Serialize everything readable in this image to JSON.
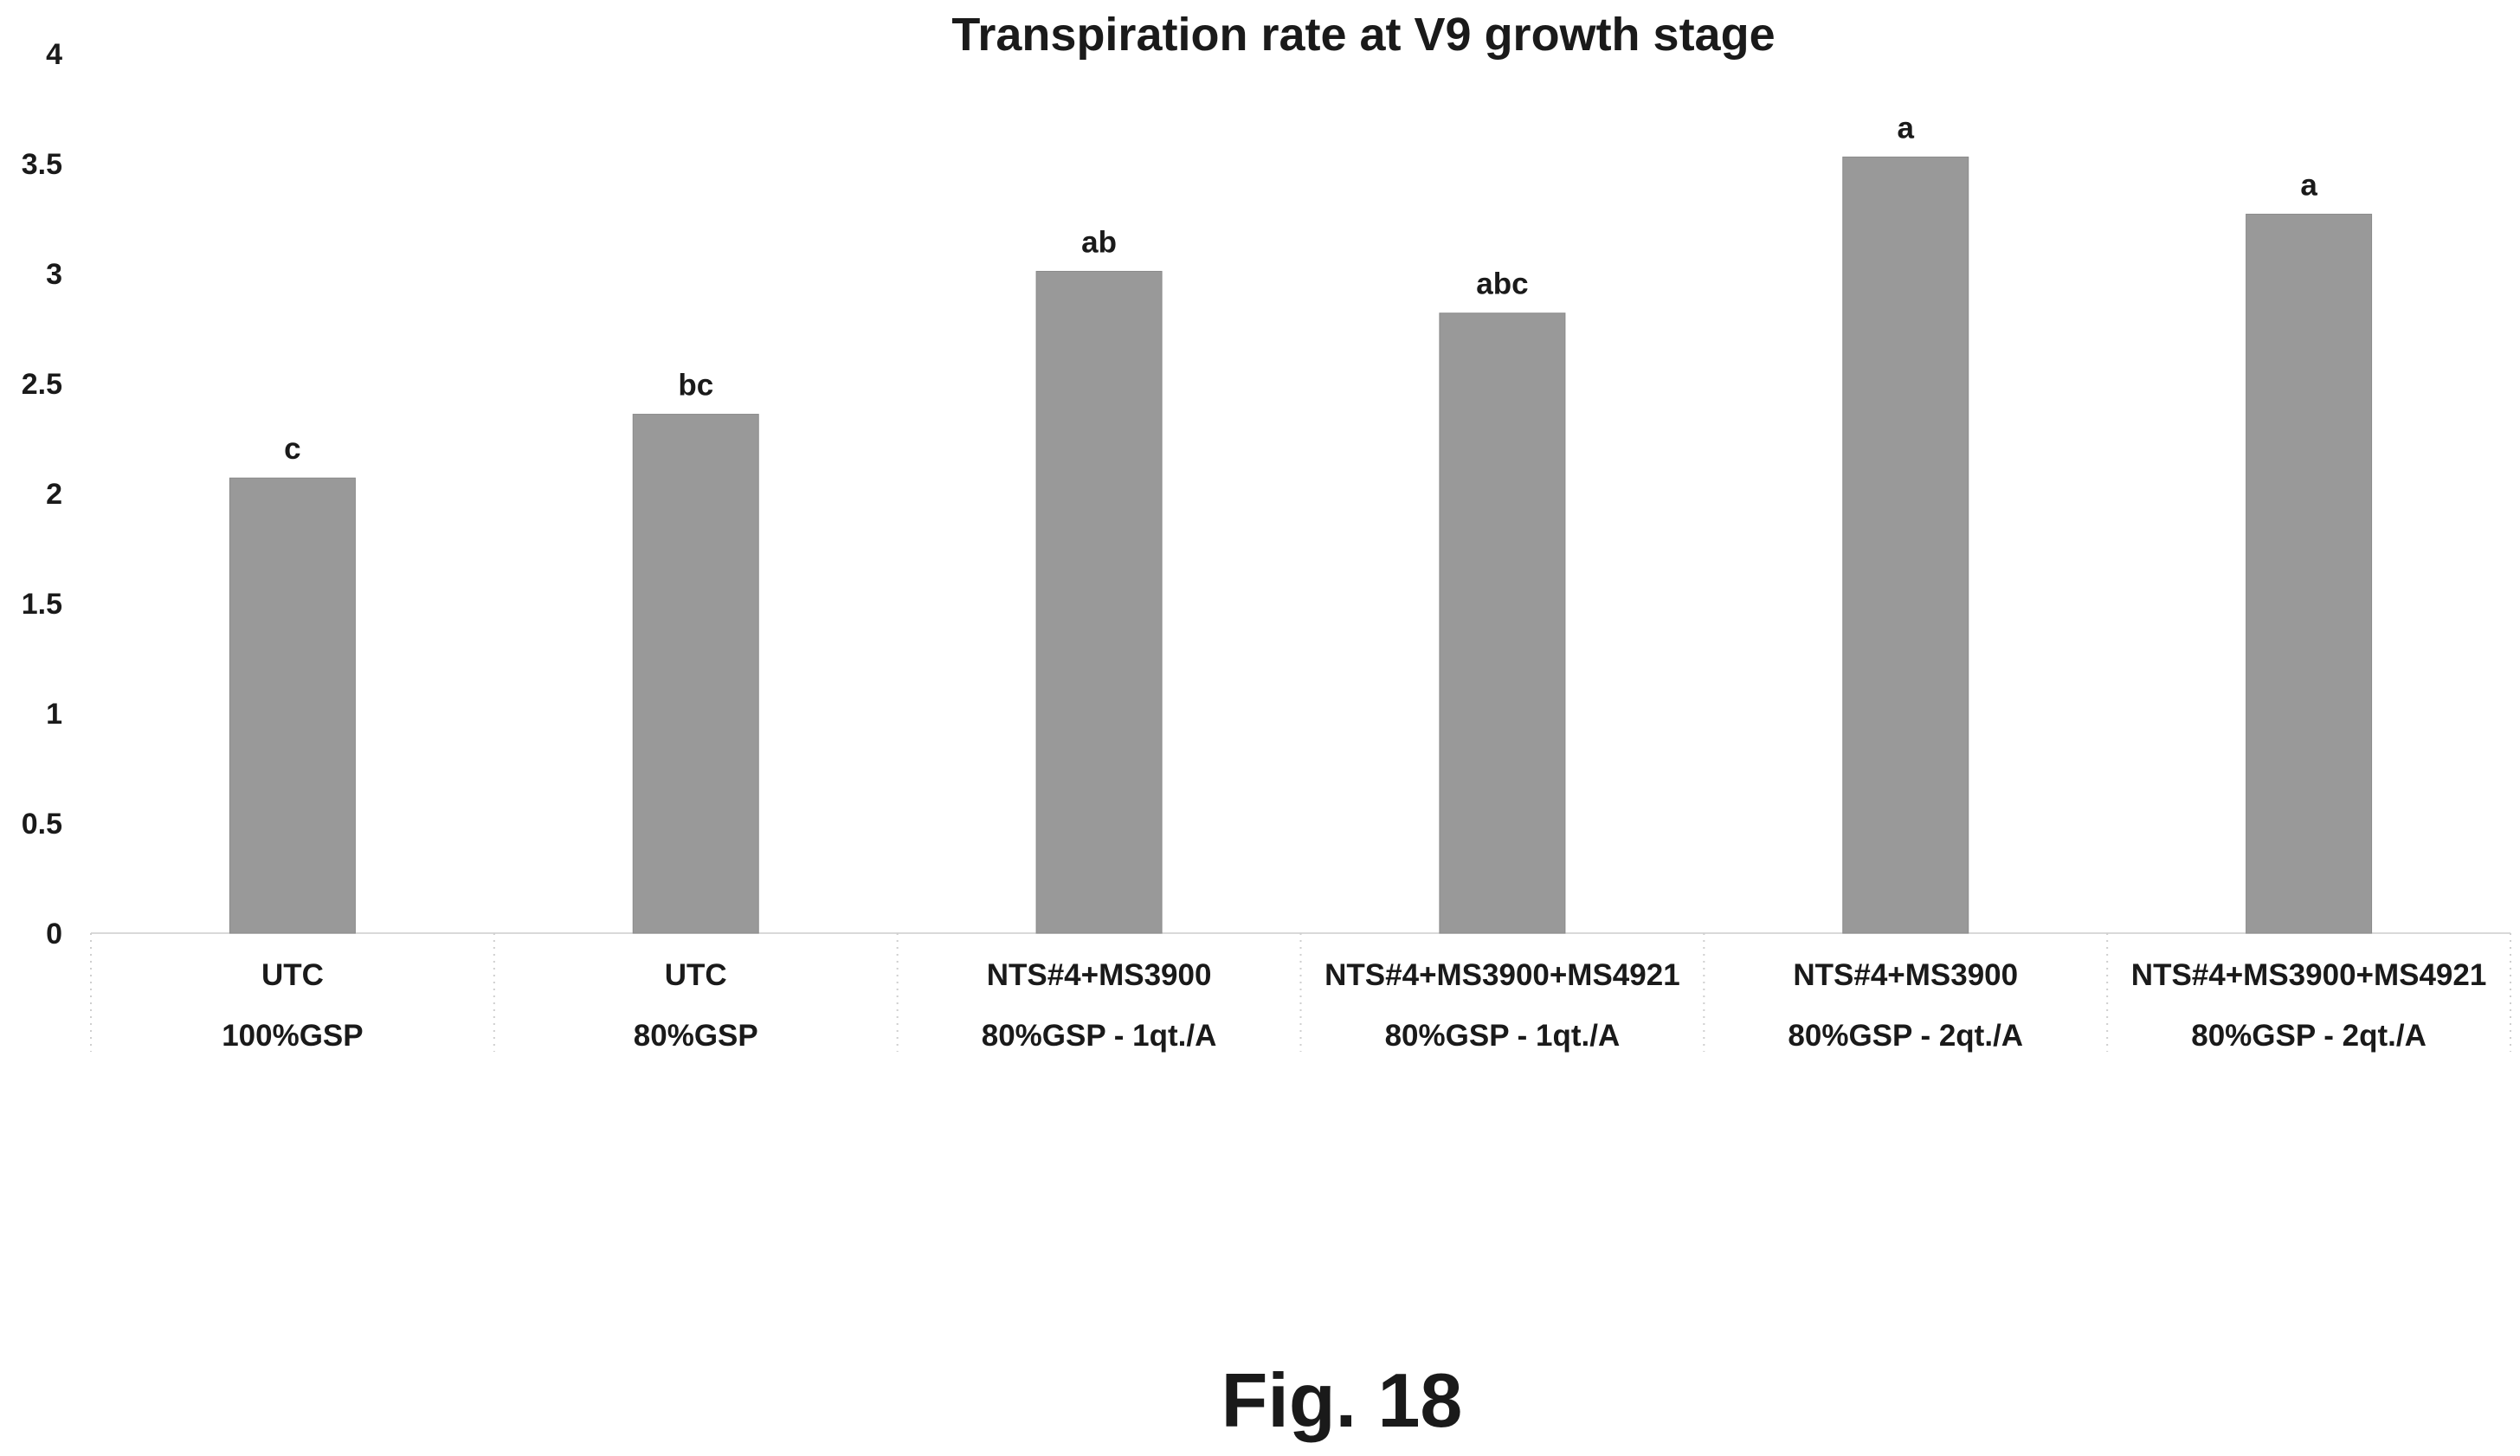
{
  "chart_data": {
    "type": "bar",
    "title": "Transpiration rate at V9 growth stage",
    "xlabel": "",
    "ylabel": "",
    "ylim": [
      0,
      4
    ],
    "yticks": [
      "0",
      "0.5",
      "1",
      "1.5",
      "2",
      "2.5",
      "3",
      "3.5",
      "4"
    ],
    "grid": false,
    "categories": [
      [
        "UTC",
        "100%GSP"
      ],
      [
        "UTC",
        "80%GSP"
      ],
      [
        "NTS#4+MS3900",
        "80%GSP - 1qt./A"
      ],
      [
        "NTS#4+MS3900+MS4921",
        "80%GSP - 1qt./A"
      ],
      [
        "NTS#4+MS3900",
        "80%GSP - 2qt./A"
      ],
      [
        "NTS#4+MS3900+MS4921",
        "80%GSP - 2qt./A"
      ]
    ],
    "values": [
      2.07,
      2.36,
      3.01,
      2.82,
      3.53,
      3.27
    ],
    "data_labels": [
      "c",
      "bc",
      "ab",
      "abc",
      "a",
      "a"
    ],
    "bar_color": "#999999"
  },
  "figure_caption": "Fig. 18"
}
